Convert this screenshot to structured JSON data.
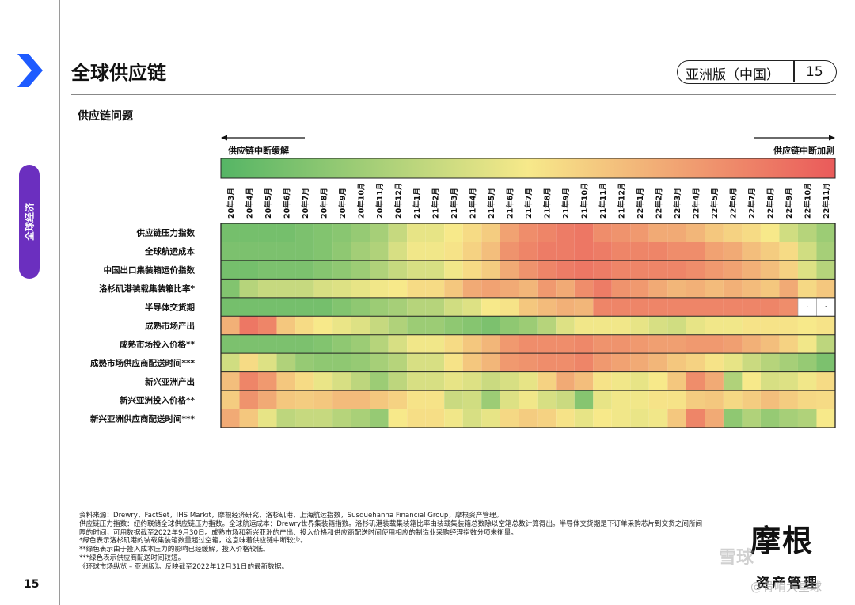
{
  "header": {
    "title": "全球供应链",
    "edition_label": "亚洲版（中国）",
    "page_number": "15",
    "side_tab": "全球经济",
    "accent_color": "#1e5bff",
    "tab_color": "#6b2fbf"
  },
  "section": {
    "title": "供应链问题",
    "arrow_left_label": "供应链中断缓解",
    "arrow_right_label": "供应链中断加剧"
  },
  "chart_data": {
    "type": "heatmap",
    "title": "供应链问题",
    "color_scale": {
      "low": "#55b565",
      "mid": "#f7e98a",
      "high": "#ea5a5a",
      "low_meaning": "供应链中断缓解",
      "high_meaning": "供应链中断加剧"
    },
    "columns": [
      "20年3月",
      "20年4月",
      "20年5月",
      "20年6月",
      "20年7月",
      "20年8月",
      "20年9月",
      "20年10月",
      "20年11月",
      "20年12月",
      "21年1月",
      "21年2月",
      "21年3月",
      "21年4月",
      "21年5月",
      "21年6月",
      "21年7月",
      "21年8月",
      "21年9月",
      "21年10月",
      "21年11月",
      "21年12月",
      "22年1月",
      "22年2月",
      "22年3月",
      "22年4月",
      "22年5月",
      "22年6月",
      "22年7月",
      "22年8月",
      "22年9月",
      "22年10月",
      "22年11月"
    ],
    "rows": [
      "供应链压力指数",
      "全球航运成本",
      "中国出口集装箱运价指数",
      "洛杉矶港装载集装箱比率*",
      "半导体交货期",
      "成熟市场产出",
      "成熟市场投入价格**",
      "成熟市场供应商配送时间***",
      "新兴亚洲产出",
      "新兴亚洲投入价格**",
      "新兴亚洲供应商配送时间***"
    ],
    "values": [
      [
        10,
        10,
        10,
        10,
        12,
        14,
        16,
        20,
        25,
        35,
        45,
        45,
        50,
        55,
        60,
        75,
        82,
        85,
        88,
        90,
        82,
        80,
        78,
        72,
        72,
        68,
        62,
        58,
        55,
        50,
        38,
        30,
        22
      ],
      [
        12,
        12,
        12,
        12,
        12,
        14,
        18,
        24,
        28,
        40,
        48,
        48,
        52,
        58,
        65,
        80,
        85,
        88,
        88,
        90,
        88,
        85,
        85,
        85,
        82,
        82,
        75,
        72,
        65,
        60,
        55,
        38,
        25
      ],
      [
        10,
        10,
        12,
        12,
        12,
        15,
        18,
        22,
        28,
        35,
        40,
        40,
        48,
        55,
        60,
        72,
        80,
        85,
        88,
        90,
        88,
        85,
        85,
        85,
        85,
        82,
        78,
        75,
        70,
        65,
        58,
        42,
        30
      ],
      [
        14,
        30,
        35,
        35,
        35,
        40,
        42,
        45,
        48,
        50,
        55,
        55,
        62,
        72,
        75,
        72,
        68,
        78,
        72,
        82,
        88,
        80,
        78,
        72,
        68,
        70,
        66,
        70,
        66,
        62,
        72,
        56,
        62
      ],
      [
        10,
        10,
        10,
        10,
        10,
        10,
        14,
        18,
        22,
        25,
        30,
        30,
        38,
        42,
        50,
        52,
        62,
        66,
        70,
        68,
        85,
        85,
        85,
        85,
        85,
        85,
        85,
        85,
        85,
        85,
        82,
        null,
        null
      ],
      [
        70,
        90,
        85,
        62,
        55,
        50,
        46,
        42,
        35,
        28,
        22,
        22,
        18,
        15,
        12,
        18,
        22,
        30,
        42,
        48,
        48,
        48,
        45,
        40,
        38,
        45,
        48,
        48,
        52,
        52,
        52,
        50,
        52
      ],
      [
        12,
        12,
        12,
        12,
        12,
        14,
        18,
        22,
        30,
        40,
        48,
        48,
        55,
        62,
        68,
        78,
        82,
        82,
        82,
        84,
        80,
        80,
        78,
        76,
        76,
        78,
        78,
        76,
        70,
        65,
        58,
        48,
        32
      ],
      [
        38,
        55,
        42,
        28,
        20,
        18,
        18,
        20,
        25,
        30,
        40,
        40,
        52,
        62,
        68,
        78,
        80,
        82,
        82,
        85,
        78,
        75,
        72,
        68,
        62,
        58,
        52,
        45,
        36,
        30,
        25,
        20,
        12
      ],
      [
        65,
        85,
        78,
        62,
        55,
        46,
        40,
        32,
        22,
        32,
        40,
        40,
        45,
        42,
        36,
        40,
        45,
        58,
        72,
        65,
        52,
        48,
        45,
        50,
        62,
        82,
        72,
        28,
        50,
        40,
        42,
        48,
        55
      ],
      [
        60,
        80,
        72,
        62,
        60,
        62,
        66,
        66,
        62,
        58,
        52,
        52,
        36,
        38,
        22,
        42,
        48,
        40,
        36,
        15,
        45,
        48,
        48,
        52,
        52,
        60,
        62,
        56,
        60,
        65,
        60,
        56,
        55
      ],
      [
        72,
        62,
        45,
        32,
        35,
        35,
        30,
        26,
        20,
        50,
        54,
        54,
        48,
        40,
        45,
        56,
        60,
        58,
        52,
        45,
        50,
        48,
        46,
        48,
        62,
        85,
        72,
        18,
        28,
        20,
        25,
        28,
        50
      ]
    ]
  },
  "footnotes": [
    "资料来源：Drewry，FactSet，IHS Markit，摩根经济研究，洛杉矶港，上海航运指数，Susquehanna Financial Group，摩根资产管理。",
    "供应链压力指数：纽约联储全球供应链压力指数。全球航运成本：Drewry世界集装箱指数。洛杉矶港装载集装箱比率由装载集装箱总数除以空箱总数计算得出。半导体交货期是下订单采购芯片到交货之间所间隔的时间，可用数据截至2022年9月30日。成熟市场和新兴亚洲的产出、投入价格和供应商配送时间使用相应的制造业采购经理指数分项来衡量。",
    "*绿色表示洛杉矶港的装载集装箱数量超过空箱，这意味着供应链中断较少。",
    "**绿色表示由于投入成本压力的影响已经缓解，投入价格较低。",
    "***绿色表示供应商配送时间较短。",
    "《环球市场纵览 – 亚洲版》。反映截至2022年12月31日的最新数据。"
  ],
  "footer": {
    "page_number": "15",
    "logo_main": "摩根",
    "logo_sub": "资产管理",
    "watermark": "雪球",
    "watermark_sub": "@骨哨大星球"
  }
}
